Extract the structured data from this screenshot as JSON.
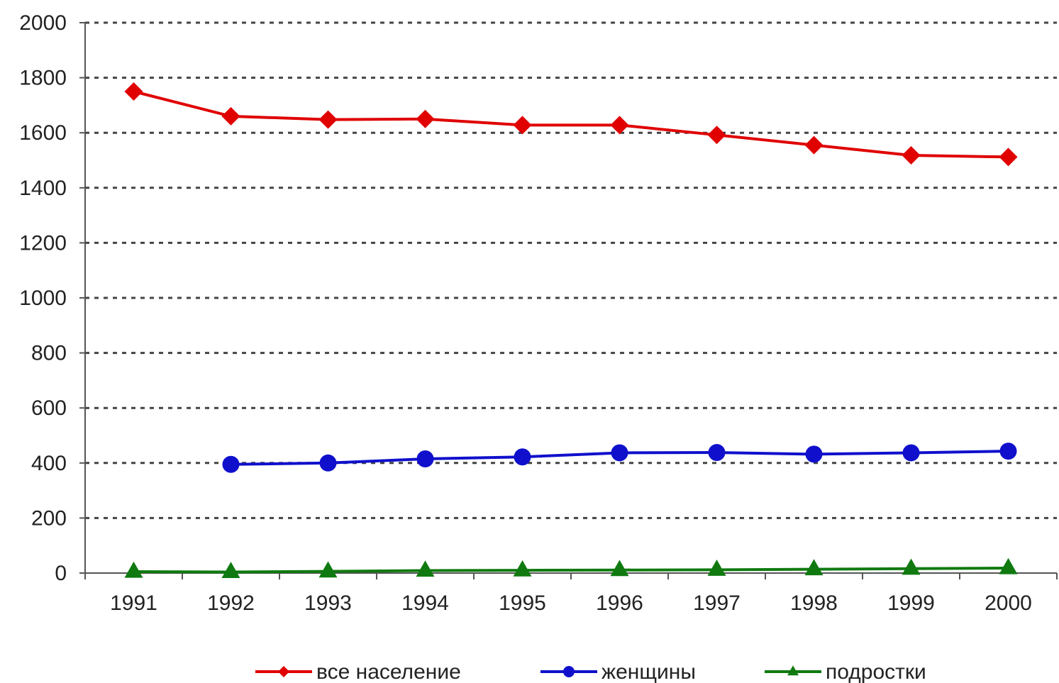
{
  "chart_data": {
    "type": "line",
    "title": "",
    "xlabel": "",
    "ylabel": "",
    "categories": [
      "1991",
      "1992",
      "1993",
      "1994",
      "1995",
      "1996",
      "1997",
      "1998",
      "1999",
      "2000"
    ],
    "ylim": [
      0,
      2000
    ],
    "yticks": [
      0,
      200,
      400,
      600,
      800,
      1000,
      1200,
      1400,
      1600,
      1800,
      2000
    ],
    "grid": true,
    "legend_position": "bottom",
    "series": [
      {
        "name": "все население",
        "color": "#e00000",
        "marker": "diamond",
        "values": [
          1750,
          1660,
          1648,
          1650,
          1628,
          1628,
          1592,
          1555,
          1518,
          1512
        ]
      },
      {
        "name": "женщины",
        "color": "#1010cc",
        "marker": "circle",
        "values": [
          null,
          395,
          400,
          415,
          422,
          437,
          438,
          432,
          437,
          443
        ]
      },
      {
        "name": "подростки",
        "color": "#107a10",
        "marker": "triangle",
        "values": [
          5,
          4,
          6,
          9,
          10,
          11,
          12,
          14,
          16,
          18
        ]
      }
    ]
  }
}
